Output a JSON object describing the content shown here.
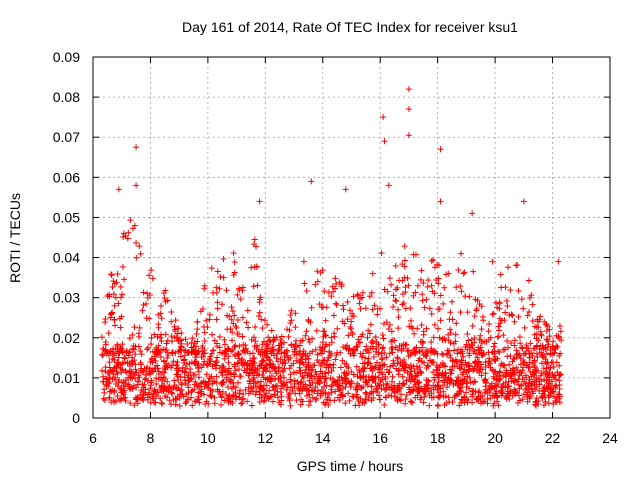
{
  "chart_data": {
    "type": "scatter",
    "title": "Day 161 of 2014, Rate Of TEC Index for receiver ksu1",
    "xlabel": "GPS time / hours",
    "ylabel": "ROTI / TECUs",
    "xlim": [
      6,
      24
    ],
    "ylim": [
      0,
      0.09
    ],
    "x_ticks": [
      "6",
      "8",
      "10",
      "12",
      "14",
      "16",
      "18",
      "20",
      "22",
      "24"
    ],
    "y_ticks": [
      "0",
      "0.01",
      "0.02",
      "0.03",
      "0.04",
      "0.05",
      "0.06",
      "0.07",
      "0.08",
      "0.09"
    ],
    "grid": true,
    "marker": "plus",
    "color": "#ff0000",
    "data_range_hours": [
      6.3,
      22.3
    ],
    "notable_points": [
      {
        "x": 7.5,
        "y": 0.0675
      },
      {
        "x": 7.5,
        "y": 0.058
      },
      {
        "x": 6.9,
        "y": 0.057
      },
      {
        "x": 13.6,
        "y": 0.059
      },
      {
        "x": 14.8,
        "y": 0.057
      },
      {
        "x": 16.1,
        "y": 0.075
      },
      {
        "x": 16.15,
        "y": 0.069
      },
      {
        "x": 16.3,
        "y": 0.058
      },
      {
        "x": 17.0,
        "y": 0.082
      },
      {
        "x": 17.0,
        "y": 0.077
      },
      {
        "x": 17.0,
        "y": 0.0705
      },
      {
        "x": 18.1,
        "y": 0.067
      },
      {
        "x": 18.1,
        "y": 0.054
      },
      {
        "x": 19.2,
        "y": 0.051
      },
      {
        "x": 21.0,
        "y": 0.054
      },
      {
        "x": 11.8,
        "y": 0.054
      },
      {
        "x": 22.2,
        "y": 0.039
      }
    ],
    "envelope": [
      {
        "x": 6.4,
        "y": 0.026
      },
      {
        "x": 6.6,
        "y": 0.035
      },
      {
        "x": 6.9,
        "y": 0.044
      },
      {
        "x": 7.2,
        "y": 0.048
      },
      {
        "x": 7.5,
        "y": 0.052
      },
      {
        "x": 7.8,
        "y": 0.032
      },
      {
        "x": 8.0,
        "y": 0.038
      },
      {
        "x": 8.3,
        "y": 0.028
      },
      {
        "x": 8.6,
        "y": 0.034
      },
      {
        "x": 9.0,
        "y": 0.022
      },
      {
        "x": 9.5,
        "y": 0.023
      },
      {
        "x": 10.0,
        "y": 0.04
      },
      {
        "x": 10.4,
        "y": 0.038
      },
      {
        "x": 10.8,
        "y": 0.046
      },
      {
        "x": 11.2,
        "y": 0.036
      },
      {
        "x": 11.6,
        "y": 0.048
      },
      {
        "x": 12.0,
        "y": 0.024
      },
      {
        "x": 12.5,
        "y": 0.02
      },
      {
        "x": 13.0,
        "y": 0.032
      },
      {
        "x": 13.5,
        "y": 0.045
      },
      {
        "x": 14.0,
        "y": 0.038
      },
      {
        "x": 14.5,
        "y": 0.044
      },
      {
        "x": 15.0,
        "y": 0.03
      },
      {
        "x": 15.5,
        "y": 0.033
      },
      {
        "x": 16.0,
        "y": 0.045
      },
      {
        "x": 16.5,
        "y": 0.04
      },
      {
        "x": 17.0,
        "y": 0.046
      },
      {
        "x": 17.5,
        "y": 0.036
      },
      {
        "x": 18.0,
        "y": 0.042
      },
      {
        "x": 18.5,
        "y": 0.035
      },
      {
        "x": 19.0,
        "y": 0.045
      },
      {
        "x": 19.5,
        "y": 0.028
      },
      {
        "x": 20.0,
        "y": 0.042
      },
      {
        "x": 20.5,
        "y": 0.038
      },
      {
        "x": 21.0,
        "y": 0.04
      },
      {
        "x": 21.5,
        "y": 0.026
      },
      {
        "x": 22.0,
        "y": 0.022
      },
      {
        "x": 22.3,
        "y": 0.024
      }
    ],
    "baseline_range": [
      0.004,
      0.016
    ]
  }
}
